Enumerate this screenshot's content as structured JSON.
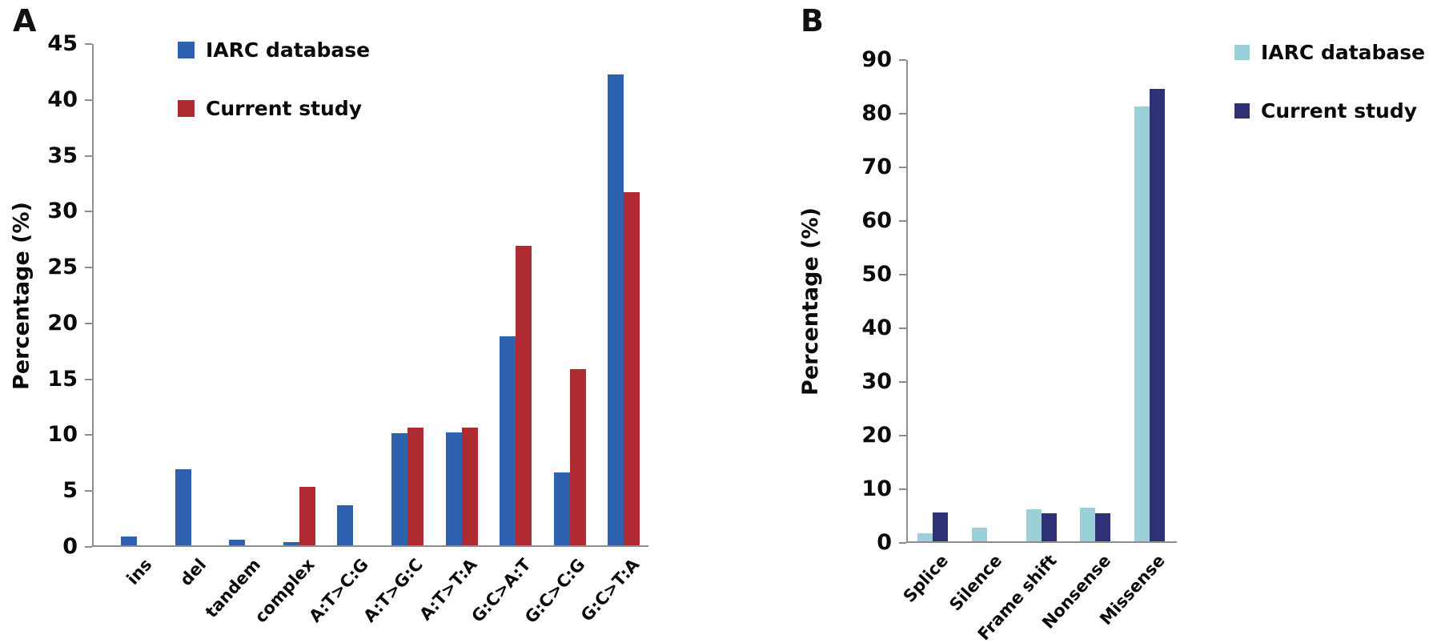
{
  "chart_data": [
    {
      "type": "bar",
      "panel_label": "A",
      "ylabel": "Percentage (%)",
      "xlabel": "",
      "ylim": [
        0,
        45
      ],
      "ytick_step": 5,
      "grid": false,
      "legend_position": "top-left-inside",
      "categories": [
        "ins",
        "del",
        "tandem",
        "complex",
        "A:T>C:G",
        "A:T>G:C",
        "A:T>T:A",
        "G:C>A:T",
        "G:C>C:G",
        "G:C>T:A"
      ],
      "series": [
        {
          "name": "IARC database",
          "color": "#2E62AE",
          "values": [
            0.8,
            6.8,
            0.5,
            0.3,
            3.6,
            10.0,
            10.1,
            18.7,
            6.5,
            42.1
          ]
        },
        {
          "name": "Current study",
          "color": "#B02B31",
          "values": [
            0,
            0,
            0,
            5.2,
            0,
            10.5,
            10.5,
            26.8,
            15.8,
            31.6
          ]
        }
      ]
    },
    {
      "type": "bar",
      "panel_label": "B",
      "ylabel": "Percentage (%)",
      "xlabel": "",
      "ylim": [
        0,
        90
      ],
      "ytick_step": 10,
      "grid": false,
      "legend_position": "top-right-outside",
      "categories": [
        "Splice",
        "Silence",
        "Frame shift",
        "Nonsense",
        "Missense"
      ],
      "series": [
        {
          "name": "IARC database",
          "color": "#9AD0D8",
          "values": [
            1.5,
            2.5,
            6.0,
            6.2,
            81.0
          ]
        },
        {
          "name": "Current study",
          "color": "#2E3174",
          "values": [
            5.3,
            0,
            5.2,
            5.2,
            84.3
          ]
        }
      ]
    }
  ]
}
